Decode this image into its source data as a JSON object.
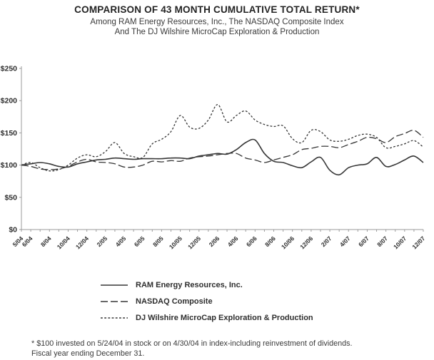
{
  "header": {
    "title": "COMPARISON OF 43 MONTH CUMULATIVE TOTAL RETURN*",
    "subtitle_line1": "Among RAM Energy Resources, Inc., The NASDAQ Composite Index",
    "subtitle_line2": "And The DJ Wilshire MicroCap Exploration & Production"
  },
  "chart_data": {
    "type": "line",
    "title": "COMPARISON OF 43 MONTH CUMULATIVE TOTAL RETURN*",
    "xlabel": "",
    "ylabel": "",
    "ylim": [
      0,
      250
    ],
    "y_tick_interval": 50,
    "y_ticks": [
      "$0",
      "$50",
      "$100",
      "$150",
      "$200",
      "$250"
    ],
    "grid": false,
    "legend_position": "bottom",
    "axis_color": "#9b9b9b",
    "line_color": "#363636",
    "months": [
      "5/04",
      "6/04",
      "7/04",
      "8/04",
      "9/04",
      "10/04",
      "11/04",
      "12/04",
      "1/05",
      "2/05",
      "3/05",
      "4/05",
      "5/05",
      "6/05",
      "7/05",
      "8/05",
      "9/05",
      "10/05",
      "11/05",
      "12/05",
      "1/06",
      "2/06",
      "3/06",
      "4/06",
      "5/06",
      "6/06",
      "7/06",
      "8/06",
      "9/06",
      "10/06",
      "11/06",
      "12/06",
      "1/07",
      "2/07",
      "3/07",
      "4/07",
      "5/07",
      "6/07",
      "7/07",
      "8/07",
      "9/07",
      "10/07",
      "11/07",
      "12/07"
    ],
    "x_label_indices": [
      0,
      1,
      3,
      5,
      7,
      9,
      11,
      13,
      15,
      17,
      19,
      21,
      23,
      25,
      27,
      29,
      31,
      33,
      35,
      37,
      39,
      41,
      43
    ],
    "series": [
      {
        "name": "RAM Energy Resources, Inc.",
        "style": "solid",
        "values": [
          100,
          102,
          104,
          102,
          98,
          97,
          102,
          105,
          108,
          109,
          111,
          110,
          109,
          110,
          110,
          110,
          111,
          111,
          110,
          114,
          116,
          118,
          117,
          124,
          135,
          139,
          118,
          106,
          104,
          99,
          96,
          105,
          112,
          92,
          85,
          96,
          100,
          102,
          112,
          98,
          101,
          108,
          114,
          104
        ]
      },
      {
        "name": "NASDAQ Composite",
        "style": "long-dash",
        "values": [
          100,
          98,
          94,
          93,
          94,
          98,
          105,
          109,
          105,
          104,
          102,
          97,
          97,
          100,
          106,
          105,
          107,
          106,
          111,
          113,
          114,
          116,
          118,
          118,
          111,
          108,
          104,
          108,
          112,
          116,
          124,
          126,
          129,
          129,
          127,
          132,
          137,
          143,
          141,
          135,
          144,
          149,
          154,
          143
        ]
      },
      {
        "name": "DJ Wilshire MicroCap Exploration & Production",
        "style": "short-dash",
        "values": [
          100,
          104,
          96,
          91,
          93,
          100,
          111,
          116,
          113,
          121,
          135,
          118,
          113,
          112,
          133,
          140,
          152,
          177,
          159,
          157,
          170,
          194,
          167,
          177,
          184,
          170,
          163,
          160,
          161,
          141,
          135,
          154,
          152,
          139,
          137,
          140,
          146,
          148,
          143,
          127,
          129,
          133,
          138,
          128
        ]
      }
    ]
  },
  "legend": {
    "items": [
      {
        "label": "RAM Energy Resources, Inc.",
        "style": "solid"
      },
      {
        "label": "NASDAQ Composite",
        "style": "long-dash"
      },
      {
        "label": "DJ Wilshire MicroCap Exploration & Production",
        "style": "short-dash"
      }
    ]
  },
  "footnote": {
    "line1": "* $100 invested on 5/24/04 in stock or on 4/30/04 in index-including reinvestment of dividends.",
    "line2": "Fiscal year ending December 31."
  }
}
